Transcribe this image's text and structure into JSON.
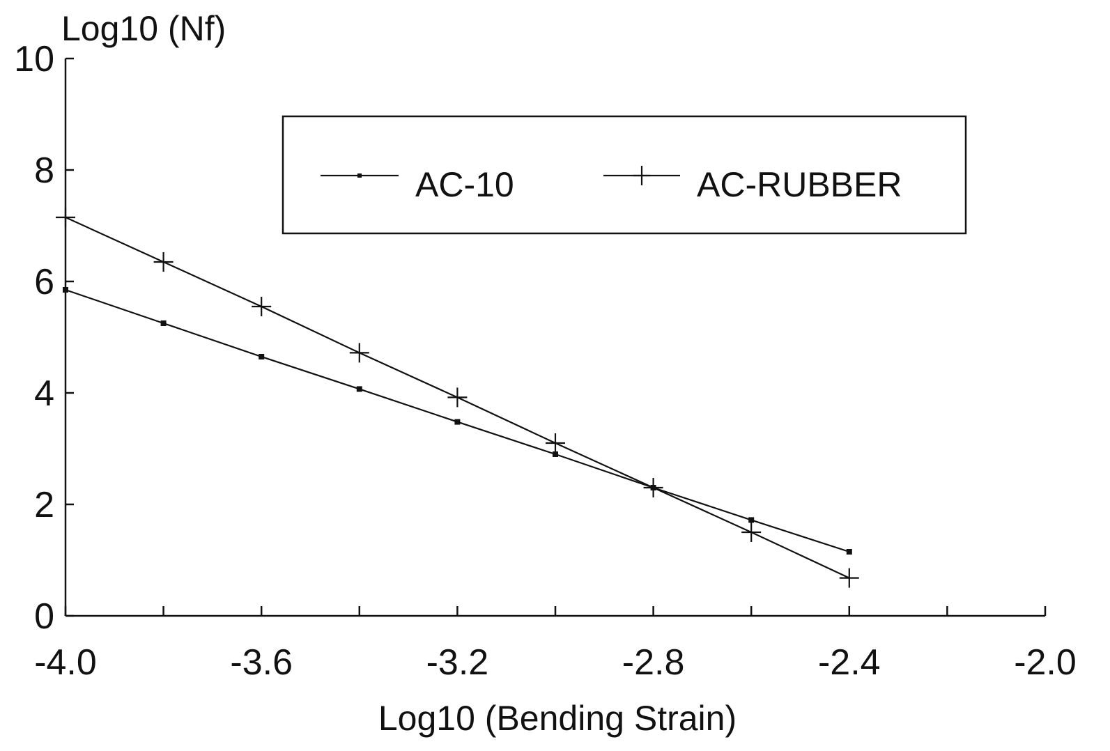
{
  "chart_data": {
    "type": "line",
    "title": "",
    "xlabel": "Log10 (Bending Strain)",
    "ylabel": "Log10 (Nf)",
    "xlim": [
      -4.0,
      -2.0
    ],
    "ylim": [
      0,
      10
    ],
    "x_ticks": [
      -4.0,
      -3.8,
      -3.6,
      -3.4,
      -3.2,
      -3.0,
      -2.8,
      -2.6,
      -2.4,
      -2.2,
      -2.0
    ],
    "x_tick_labels": [
      "-4.0",
      "-3.6",
      "-3.2",
      "-2.8",
      "-2.4",
      "-2.0"
    ],
    "x_tick_label_values": [
      -4.0,
      -3.6,
      -3.2,
      -2.8,
      -2.4,
      -2.0
    ],
    "y_ticks": [
      0,
      2,
      4,
      6,
      8,
      10
    ],
    "y_tick_labels": [
      "0",
      "2",
      "4",
      "6",
      "8",
      "10"
    ],
    "grid": false,
    "legend_position": "top-center",
    "series": [
      {
        "name": "AC-10",
        "marker": "dot",
        "x": [
          -4.0,
          -3.8,
          -3.6,
          -3.4,
          -3.2,
          -3.0,
          -2.8,
          -2.6,
          -2.4
        ],
        "y": [
          5.85,
          5.25,
          4.65,
          4.07,
          3.48,
          2.9,
          2.3,
          1.72,
          1.15
        ]
      },
      {
        "name": "AC-RUBBER",
        "marker": "plus",
        "x": [
          -4.0,
          -3.8,
          -3.6,
          -3.4,
          -3.2,
          -3.0,
          -2.8,
          -2.6,
          -2.4
        ],
        "y": [
          7.15,
          6.35,
          5.55,
          4.72,
          3.92,
          3.1,
          2.3,
          1.5,
          0.68
        ]
      }
    ]
  }
}
